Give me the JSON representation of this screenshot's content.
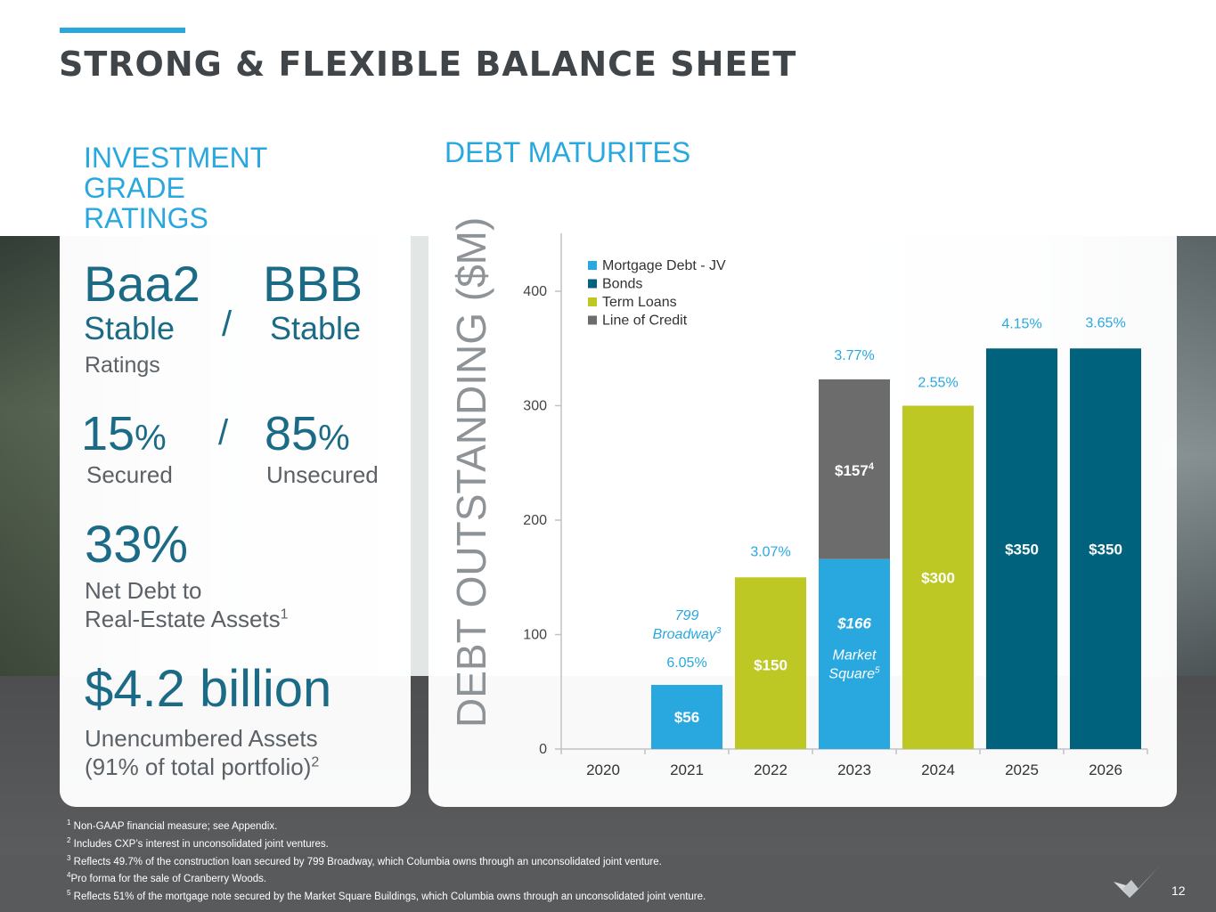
{
  "page": {
    "title": "STRONG & FLEXIBLE BALANCE SHEET",
    "page_number": "12"
  },
  "left": {
    "heading_lines": [
      "INVESTMENT",
      "GRADE",
      "RATINGS"
    ],
    "rating1": "Baa2",
    "rating2": "BBB",
    "outlook1": "Stable",
    "outlook2": "Stable",
    "slash": "/",
    "ratings_label": "Ratings",
    "secured_pct": "15",
    "unsecured_pct": "85",
    "pct_sign": "%",
    "secured_label": "Secured",
    "unsecured_label": "Unsecured",
    "net_debt_value": "33%",
    "net_debt_label1": "Net Debt to",
    "net_debt_label2": "Real-Estate Assets",
    "net_debt_sup": "1",
    "unencumbered_value": "$4.2 billion",
    "unencumbered_label1": "Unencumbered Assets",
    "unencumbered_label2": "(91% of total portfolio)",
    "unencumbered_sup": "2"
  },
  "chart_data": {
    "type": "bar",
    "stacked": true,
    "title": "DEBT MATURITES",
    "ylabel": "DEBT OUTSTANDING ($M)",
    "xlabel": "",
    "categories": [
      "2020",
      "2021",
      "2022",
      "2023",
      "2024",
      "2025",
      "2026"
    ],
    "ylim": [
      0,
      450
    ],
    "yticks": [
      0,
      100,
      200,
      300,
      400
    ],
    "legend_position": "top-left",
    "grid": false,
    "series": [
      {
        "name": "Mortgage Debt - JV",
        "color": "#29a8e0",
        "values": [
          0,
          56,
          0,
          166,
          0,
          0,
          0
        ]
      },
      {
        "name": "Bonds",
        "color": "#00627d",
        "values": [
          0,
          0,
          0,
          0,
          0,
          350,
          350
        ]
      },
      {
        "name": "Term Loans",
        "color": "#bdc825",
        "values": [
          0,
          0,
          150,
          0,
          300,
          0,
          0
        ]
      },
      {
        "name": " Line of Credit",
        "color": "#6c6c6c",
        "values": [
          0,
          0,
          0,
          157,
          0,
          0,
          0
        ]
      }
    ],
    "bar_labels": [
      {
        "category": "2021",
        "text": "$56"
      },
      {
        "category": "2022",
        "text": "$150"
      },
      {
        "category": "2023",
        "text": "$157",
        "sup": "4"
      },
      {
        "category": "2023",
        "text": "$166"
      },
      {
        "category": "2024",
        "text": "$300"
      },
      {
        "category": "2025",
        "text": "$350"
      },
      {
        "category": "2026",
        "text": "$350"
      }
    ],
    "rates": [
      {
        "category": "2021",
        "text": "6.05%"
      },
      {
        "category": "2022",
        "text": "3.07%"
      },
      {
        "category": "2023",
        "text": "3.77%"
      },
      {
        "category": "2024",
        "text": "2.55%"
      },
      {
        "category": "2025",
        "text": "4.15%"
      },
      {
        "category": "2026",
        "text": "3.65%"
      }
    ],
    "annotations": [
      {
        "category": "2021",
        "lines": [
          "799",
          "Broadway"
        ],
        "sup": "3"
      },
      {
        "category": "2023",
        "lines": [
          "Market",
          "Square"
        ],
        "sup": "5"
      }
    ]
  },
  "footnotes": [
    {
      "sup": "1",
      "text": " Non-GAAP financial measure; see Appendix."
    },
    {
      "sup": "2",
      "text": " Includes CXP’s interest in unconsolidated joint ventures."
    },
    {
      "sup": "3",
      "text": " Reflects 49.7% of the construction loan secured by 799 Broadway, which Columbia owns through an unconsolidated joint venture."
    },
    {
      "sup": "4",
      "text": "Pro forma for the sale of Cranberry Woods."
    },
    {
      "sup": "5",
      "text": " Reflects 51% of the mortgage note secured by the Market Square Buildings, which Columbia owns through an unconsolidated joint venture."
    }
  ]
}
